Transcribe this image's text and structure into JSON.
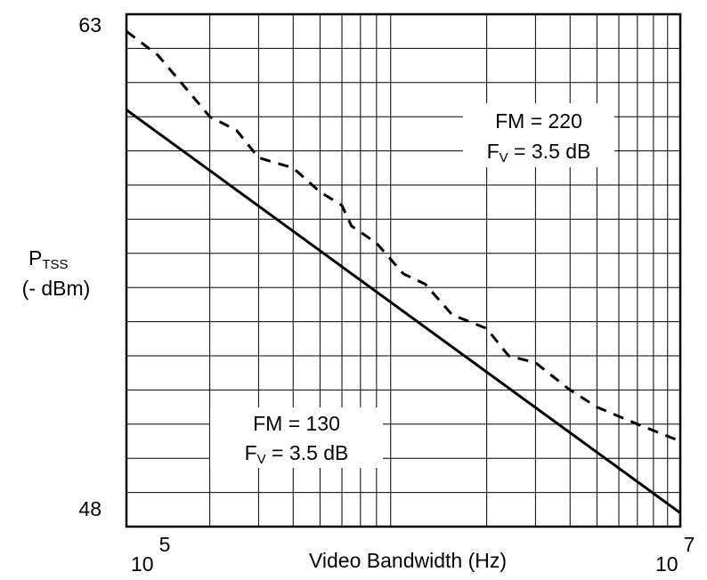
{
  "chart_data": {
    "type": "line",
    "title": "",
    "xlabel": "Video Bandwidth (Hz)",
    "ylabel": {
      "main": "P",
      "sub": "TSS",
      "unit": "(- dBm)"
    },
    "x_scale": "log",
    "xlim": [
      100000,
      10000000
    ],
    "ylim": [
      48,
      63
    ],
    "x_tick_labels": [
      {
        "base": "10",
        "exp": "5"
      },
      {
        "base": "10",
        "exp": "7"
      }
    ],
    "y_tick_labels": [
      "63",
      "48"
    ],
    "grid": true,
    "series": [
      {
        "name": "FM = 220, F_V = 3.5 dB",
        "style": "dashed",
        "points": [
          [
            100000,
            62.5
          ],
          [
            130000,
            61.8
          ],
          [
            150000,
            61.2
          ],
          [
            200000,
            60.0
          ],
          [
            250000,
            59.6
          ],
          [
            300000,
            58.8
          ],
          [
            400000,
            58.5
          ],
          [
            500000,
            57.8
          ],
          [
            600000,
            57.4
          ],
          [
            650000,
            56.8
          ],
          [
            800000,
            56.3
          ],
          [
            1000000,
            55.4
          ],
          [
            1200000,
            55.1
          ],
          [
            1500000,
            54.2
          ],
          [
            2000000,
            53.8
          ],
          [
            2400000,
            53.0
          ],
          [
            3000000,
            52.8
          ],
          [
            4000000,
            52.0
          ],
          [
            5000000,
            51.5
          ],
          [
            7000000,
            51.0
          ],
          [
            10000000,
            50.5
          ]
        ]
      },
      {
        "name": "FM = 130, F_V = 3.5 dB",
        "style": "solid",
        "points": [
          [
            100000,
            60.2
          ],
          [
            10000000,
            48.4
          ]
        ]
      }
    ],
    "annotations": [
      {
        "line1": "FM = 220",
        "line2_main": "F",
        "line2_sub": "V",
        "line2_rest": " = 3.5 dB"
      },
      {
        "line1": "FM = 130",
        "line2_main": "F",
        "line2_sub": "V",
        "line2_rest": " = 3.5 dB"
      }
    ]
  }
}
